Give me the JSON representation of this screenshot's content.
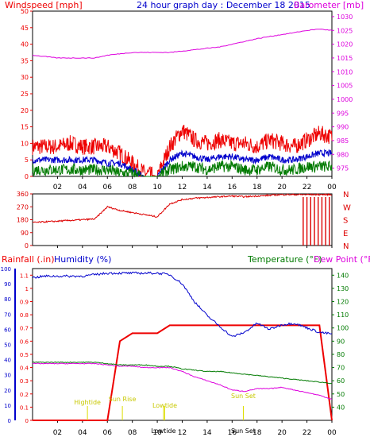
{
  "title": "24 hour graph day : December 18 2015",
  "colors": {
    "wind": "#ee0000",
    "gust_avg": "#0000cc",
    "wind_low": "#007a00",
    "baro": "#dd00dd",
    "winddir": "#dd0000",
    "rain": "#ee0000",
    "humidity": "#0000cc",
    "temperature": "#007a00",
    "dewpoint": "#dd00dd",
    "annotation": "#dddd00",
    "frame": "#000000"
  },
  "x_ticks": [
    "02",
    "04",
    "06",
    "08",
    "10",
    "12",
    "14",
    "16",
    "18",
    "20",
    "22",
    "00"
  ],
  "chart_data": [
    {
      "type": "line",
      "panel": "wind_baro",
      "label_left": "Windspeed [mph]",
      "label_right": "Barometer [mb]",
      "y_left": {
        "range": [
          0,
          50
        ],
        "ticks": [
          "0",
          "5",
          "10",
          "15",
          "20",
          "25",
          "30",
          "35",
          "40",
          "45",
          "50"
        ]
      },
      "y_right": {
        "range": [
          972,
          1032
        ],
        "ticks": [
          "975",
          "980",
          "985",
          "990",
          "995",
          "1000",
          "1005",
          "1010",
          "1015",
          "1020",
          "1025",
          "1030"
        ]
      },
      "x": [
        0,
        1,
        2,
        3,
        4,
        5,
        6,
        7,
        8,
        9,
        10,
        11,
        12,
        13,
        14,
        15,
        16,
        17,
        18,
        19,
        20,
        21,
        22,
        23,
        24
      ],
      "series": [
        {
          "key": "wind_max",
          "axis": "left",
          "color": "wind",
          "values": [
            9,
            9,
            9,
            10,
            9,
            9,
            9,
            7,
            4,
            1,
            0,
            9,
            14,
            11,
            10,
            11,
            10,
            10,
            9,
            11,
            10,
            9,
            11,
            13,
            12
          ]
        },
        {
          "key": "wind_avg",
          "axis": "left",
          "color": "gust_avg",
          "values": [
            5,
            5,
            5,
            5,
            5,
            5,
            4,
            4,
            2,
            0,
            0,
            5,
            7,
            6,
            5,
            6,
            6,
            5,
            5,
            6,
            5,
            5,
            6,
            7,
            7
          ]
        },
        {
          "key": "wind_min",
          "axis": "left",
          "color": "wind_low",
          "values": [
            2,
            2,
            2,
            2,
            2,
            2,
            2,
            1,
            1,
            0,
            0,
            2,
            3,
            3,
            2,
            3,
            3,
            2,
            2,
            3,
            2,
            2,
            3,
            3,
            3
          ]
        },
        {
          "key": "barometer",
          "axis": "right",
          "color": "baro",
          "values": [
            1016,
            1015.5,
            1015,
            1015,
            1015,
            1015,
            1016,
            1016.5,
            1017,
            1017,
            1017,
            1017,
            1017.5,
            1018,
            1018.5,
            1019,
            1020,
            1021,
            1022,
            1022.8,
            1023.5,
            1024.2,
            1025,
            1025.5,
            1025
          ]
        }
      ]
    },
    {
      "type": "scatter",
      "panel": "wind_direction",
      "y_right_labels": [
        "N",
        "W",
        "S",
        "E",
        "N"
      ],
      "y_left": {
        "range": [
          0,
          360
        ],
        "ticks": [
          "0",
          "90",
          "180",
          "270",
          "360"
        ]
      },
      "x": [
        0,
        1,
        2,
        3,
        4,
        5,
        6,
        7,
        8,
        9,
        10,
        11,
        12,
        13,
        14,
        15,
        16,
        17,
        18,
        19,
        20,
        21,
        22,
        23,
        24
      ],
      "series": [
        {
          "key": "wind_direction",
          "color": "winddir",
          "values": [
            160,
            165,
            170,
            175,
            180,
            185,
            270,
            245,
            230,
            215,
            200,
            290,
            320,
            330,
            335,
            340,
            345,
            340,
            345,
            350,
            355,
            355,
            355,
            355,
            355
          ]
        }
      ],
      "spikes": [
        {
          "x": 21.7
        },
        {
          "x": 22.0
        },
        {
          "x": 22.3
        },
        {
          "x": 22.6
        },
        {
          "x": 22.9
        },
        {
          "x": 23.2
        },
        {
          "x": 23.5
        },
        {
          "x": 23.8
        }
      ]
    },
    {
      "type": "line",
      "panel": "rain_hum_temp",
      "label_rain": "Rainfall (.in)",
      "label_humidity": "Humidity (%)",
      "label_temperature": "Temperature (°F)",
      "label_dewpoint": "Dew Point (°F)",
      "y_rain": {
        "range": [
          0,
          1.15
        ],
        "ticks": [
          "0",
          "0.1",
          "0.2",
          "0.3",
          "0.4",
          "0.5",
          "0.6",
          "0.7",
          "0.8",
          "0.9",
          "1",
          "1.1"
        ]
      },
      "y_humidity": {
        "range": [
          0,
          100
        ],
        "ticks": [
          "0",
          "10",
          "20",
          "30",
          "40",
          "50",
          "60",
          "70",
          "80",
          "90",
          "100"
        ]
      },
      "y_temp": {
        "range": [
          30,
          145
        ],
        "ticks": [
          "40",
          "50",
          "60",
          "70",
          "80",
          "90",
          "100",
          "110",
          "120",
          "130",
          "140"
        ]
      },
      "x": [
        0,
        1,
        2,
        3,
        4,
        5,
        6,
        7,
        8,
        9,
        10,
        11,
        12,
        13,
        14,
        15,
        16,
        17,
        18,
        19,
        20,
        21,
        22,
        23,
        24
      ],
      "series": [
        {
          "key": "rainfall",
          "axis": "rain",
          "color": "rain",
          "values": [
            0,
            0,
            0,
            0,
            0,
            0,
            0,
            0.6,
            0.66,
            0.66,
            0.66,
            0.72,
            0.72,
            0.72,
            0.72,
            0.72,
            0.72,
            0.72,
            0.72,
            0.72,
            0.72,
            0.72,
            0.72,
            0.72,
            0
          ]
        },
        {
          "key": "humidity",
          "axis": "humidity",
          "color": "humidity",
          "values": [
            94,
            95,
            95,
            95,
            95,
            96,
            97,
            97,
            97,
            97,
            97,
            96,
            90,
            78,
            69,
            62,
            55,
            58,
            64,
            60,
            63,
            64,
            61,
            58,
            57
          ]
        },
        {
          "key": "temperature",
          "axis": "temp",
          "color": "temperature",
          "values": [
            74,
            74,
            74,
            74,
            74,
            74,
            73,
            72,
            72,
            72,
            71,
            71,
            69,
            68,
            67,
            67,
            66,
            65,
            64,
            63,
            62,
            61,
            60,
            59,
            58
          ]
        },
        {
          "key": "dewpoint",
          "axis": "temp",
          "color": "dewpoint",
          "values": [
            73,
            73,
            73,
            73,
            73,
            73,
            72,
            71,
            71,
            70,
            70,
            70,
            67,
            63,
            60,
            57,
            53,
            52,
            54,
            54,
            55,
            53,
            51,
            49,
            46
          ]
        }
      ],
      "annotations": [
        {
          "label": "Hightide",
          "x": 4.4,
          "y": 2
        },
        {
          "label": "Sun Rise",
          "x": 7.2,
          "y": 3
        },
        {
          "label": "Lowtide",
          "x": 10.6,
          "y": 1
        },
        {
          "label": "Lowtide",
          "x": 10.5,
          "y": -1
        },
        {
          "label": "Sun Set",
          "x": 16.9,
          "y": 4
        },
        {
          "label": "Sun Set",
          "x": 16.9,
          "y": -1
        }
      ]
    }
  ]
}
